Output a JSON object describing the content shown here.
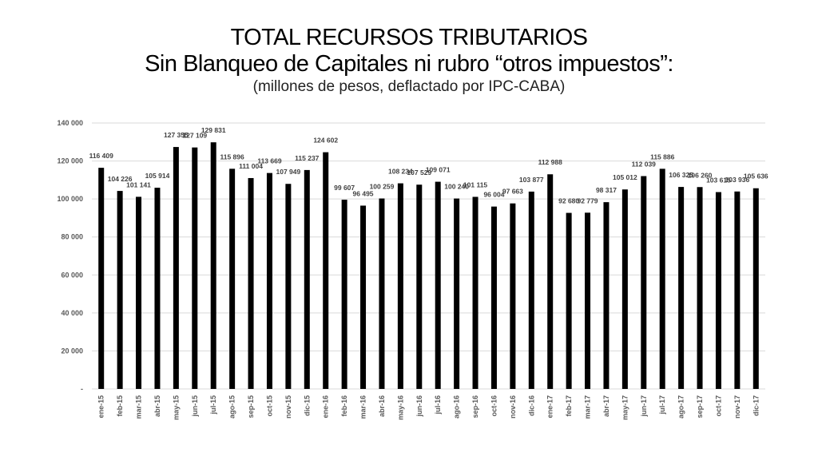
{
  "title": "TOTAL RECURSOS TRIBUTARIOS",
  "subtitle": "Sin Blanqueo de Capitales ni rubro “otros impuestos”:",
  "note": "(millones de pesos, deflactado por IPC-CABA)",
  "chart_data": {
    "type": "bar",
    "categories": [
      "ene-15",
      "feb-15",
      "mar-15",
      "abr-15",
      "may-15",
      "jun-15",
      "jul-15",
      "ago-15",
      "sep-15",
      "oct-15",
      "nov-15",
      "dic-15",
      "ene-16",
      "feb-16",
      "mar-16",
      "abr-16",
      "may-16",
      "jun-16",
      "jul-16",
      "ago-16",
      "sep-16",
      "oct-16",
      "nov-16",
      "dic-16",
      "ene-17",
      "feb-17",
      "mar-17",
      "abr-17",
      "may-17",
      "jun-17",
      "jul-17",
      "ago-17",
      "sep-17",
      "oct-17",
      "nov-17",
      "dic-17"
    ],
    "values": [
      116409,
      104226,
      101141,
      105914,
      127355,
      127109,
      129831,
      115896,
      111004,
      113669,
      107949,
      115237,
      124602,
      99607,
      96495,
      100259,
      108234,
      107529,
      109071,
      100240,
      101115,
      96004,
      97663,
      103877,
      112988,
      92680,
      92779,
      98317,
      105012,
      112039,
      115886,
      106325,
      106260,
      103615,
      103936,
      105636
    ],
    "labels": [
      "116 409",
      "104 226",
      "101 141",
      "105 914",
      "127 355",
      "127 109",
      "129 831",
      "115 896",
      "111 004",
      "113 669",
      "107 949",
      "115 237",
      "124 602",
      "99 607",
      "96 495",
      "100 259",
      "108 234",
      "107 529",
      "109 071",
      "100 240",
      "101 115",
      "96 004",
      "97 663",
      "103 877",
      "112 988",
      "92 680",
      "92 779",
      "98 317",
      "105 012",
      "112 039",
      "115 886",
      "106 325",
      "106 260",
      "103 615",
      "103 936",
      "105 636"
    ],
    "ylim": [
      0,
      140000
    ],
    "yticks": [
      {
        "value": 0,
        "label": "-"
      },
      {
        "value": 20000,
        "label": "20 000"
      },
      {
        "value": 40000,
        "label": "40 000"
      },
      {
        "value": 60000,
        "label": "60 000"
      },
      {
        "value": 80000,
        "label": "80 000"
      },
      {
        "value": 100000,
        "label": "100 000"
      },
      {
        "value": 120000,
        "label": "120 000"
      },
      {
        "value": 140000,
        "label": "140 000"
      }
    ],
    "grid": true,
    "bar_color": "#000000",
    "grid_color": "#d9d9d9"
  }
}
